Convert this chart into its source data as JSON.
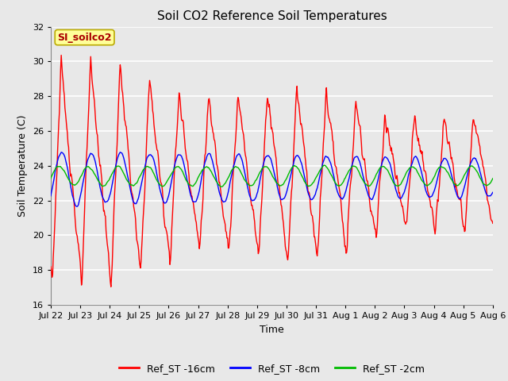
{
  "title": "Soil CO2 Reference Soil Temperatures",
  "xlabel": "Time",
  "ylabel": "Soil Temperature (C)",
  "ylim": [
    16,
    32
  ],
  "yticks": [
    16,
    18,
    20,
    22,
    24,
    26,
    28,
    30,
    32
  ],
  "x_labels": [
    "Jul 22",
    "Jul 23",
    "Jul 24",
    "Jul 25",
    "Jul 26",
    "Jul 27",
    "Jul 28",
    "Jul 29",
    "Jul 30",
    "Jul 31",
    "Aug 1",
    "Aug 2",
    "Aug 3",
    "Aug 4",
    "Aug 5",
    "Aug 6"
  ],
  "legend_labels": [
    "Ref_ST -16cm",
    "Ref_ST -8cm",
    "Ref_ST -2cm"
  ],
  "legend_colors": [
    "#ff0000",
    "#0000ff",
    "#00bb00"
  ],
  "annotation_text": "SI_soilco2",
  "annotation_bg": "#ffff99",
  "annotation_border": "#bbaa00",
  "fig_bg": "#e8e8e8",
  "plot_bg": "#e8e8e8",
  "grid_color": "#ffffff",
  "n_days": 15,
  "line_width": 1.0,
  "title_fontsize": 11,
  "label_fontsize": 9,
  "tick_fontsize": 8
}
